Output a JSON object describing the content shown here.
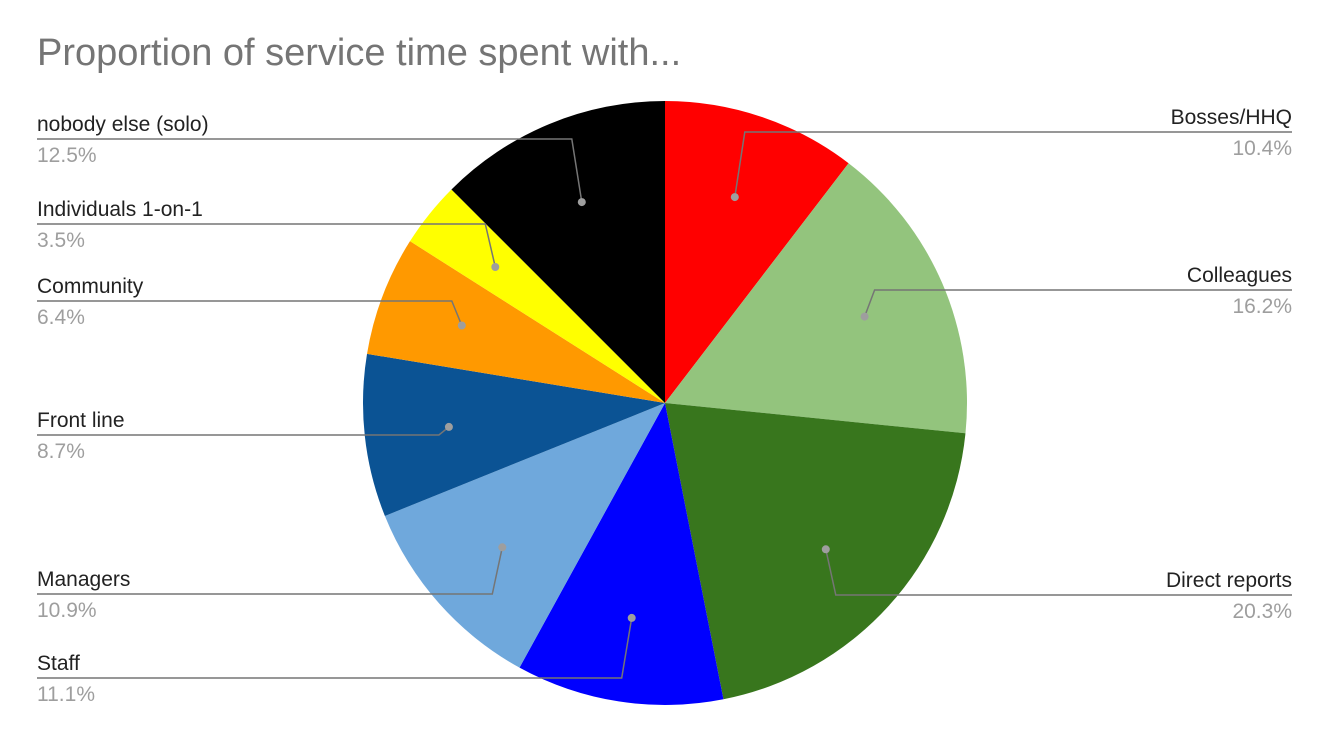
{
  "chart_data": {
    "type": "pie",
    "title": "Proportion of service time spent with...",
    "slices": [
      {
        "label": "Bosses/HHQ",
        "value": 10.4,
        "value_label": "10.4%",
        "color": "#ff0000"
      },
      {
        "label": "Colleagues",
        "value": 16.2,
        "value_label": "16.2%",
        "color": "#93c47d"
      },
      {
        "label": "Direct reports",
        "value": 20.3,
        "value_label": "20.3%",
        "color": "#38761d"
      },
      {
        "label": "Staff",
        "value": 11.1,
        "value_label": "11.1%",
        "color": "#0000ff"
      },
      {
        "label": "Managers",
        "value": 10.9,
        "value_label": "10.9%",
        "color": "#6fa8dc"
      },
      {
        "label": "Front line",
        "value": 8.7,
        "value_label": "8.7%",
        "color": "#0b5394"
      },
      {
        "label": "Community",
        "value": 6.4,
        "value_label": "6.4%",
        "color": "#ff9900"
      },
      {
        "label": "Individuals 1-on-1",
        "value": 3.5,
        "value_label": "3.5%",
        "color": "#ffff00"
      },
      {
        "label": "nobody else (solo)",
        "value": 12.5,
        "value_label": "12.5%",
        "color": "#000000"
      }
    ],
    "start_angle": "top",
    "direction": "clockwise",
    "label_placement": "outside with leader lines"
  }
}
